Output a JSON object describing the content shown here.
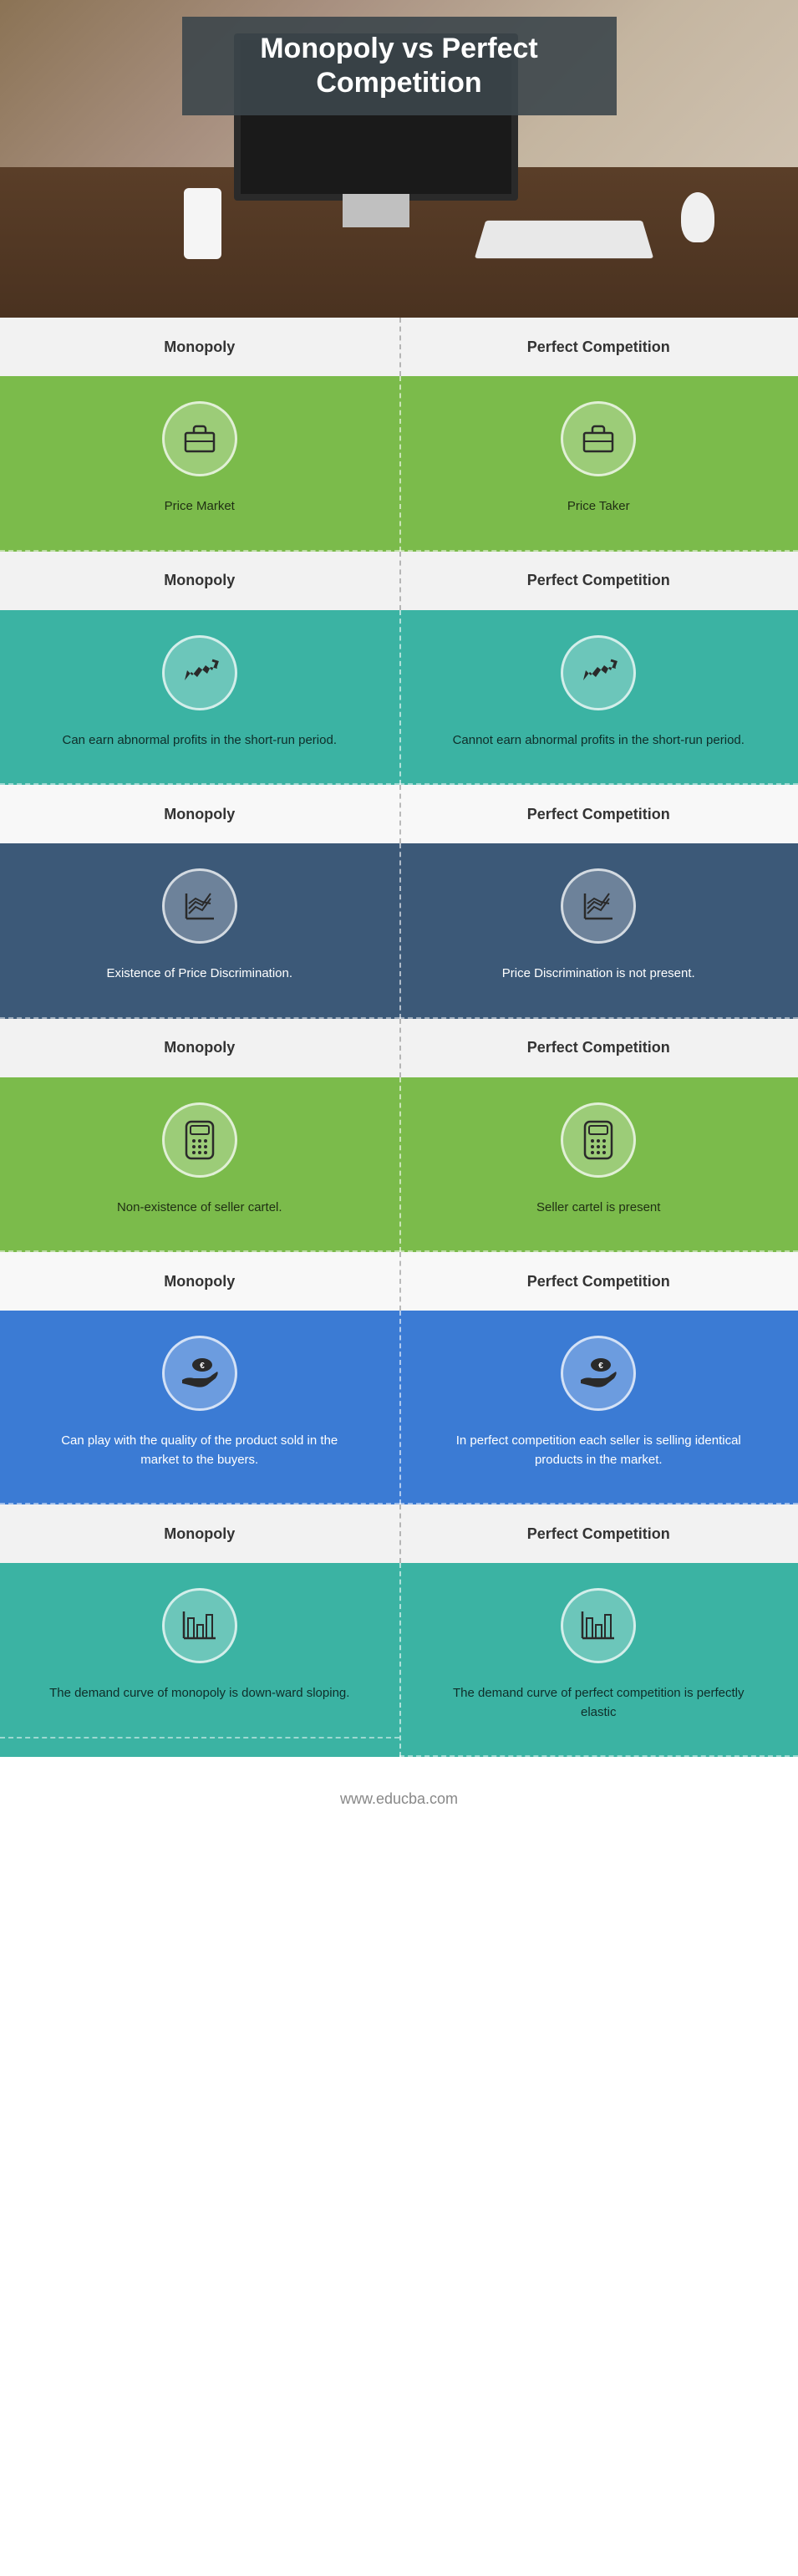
{
  "title": "Monopoly vs Perfect Competition",
  "footer_url": "www.educba.com",
  "col_left_label": "Monopoly",
  "col_right_label": "Perfect Competition",
  "sections": [
    {
      "header_bg": "#f2f2f2",
      "header_text_color": "#333333",
      "body_bg": "#7bbb4b",
      "icon": "briefcase",
      "left_text": "Price Market",
      "right_text": "Price Taker"
    },
    {
      "header_bg": "#f2f2f2",
      "header_text_color": "#333333",
      "body_bg": "#3bb3a3",
      "icon": "arrow-chart",
      "left_text": "Can earn abnormal profits in the short-run period.",
      "right_text": "Cannot earn abnormal profits in the short-run period."
    },
    {
      "header_bg": "#f8f8f8",
      "header_text_color": "#333333",
      "body_bg": "#3c5978",
      "icon": "line-chart",
      "desc_color": "#ffffff",
      "left_text": "Existence of Price Discrimination.",
      "right_text": "Price Discrimination is not present."
    },
    {
      "header_bg": "#f2f2f2",
      "header_text_color": "#333333",
      "body_bg": "#7bbb4b",
      "icon": "calculator",
      "left_text": "Non-existence of seller cartel.",
      "right_text": "Seller cartel is present"
    },
    {
      "header_bg": "#f8f8f8",
      "header_text_color": "#333333",
      "body_bg": "#3b7bd4",
      "icon": "money-hand",
      "desc_color": "#ffffff",
      "left_text": "Can play with the quality of the product sold in the market to the buyers.",
      "right_text": "In perfect competition each seller is selling identical products in the market."
    },
    {
      "header_bg": "#f2f2f2",
      "header_text_color": "#333333",
      "body_bg": "#3bb3a3",
      "icon": "bar-chart",
      "left_text": "The demand curve of monopoly is down-ward sloping.",
      "right_text": "The demand curve of perfect competition is perfectly elastic"
    }
  ],
  "icons_stroke": "#2a2a2a"
}
